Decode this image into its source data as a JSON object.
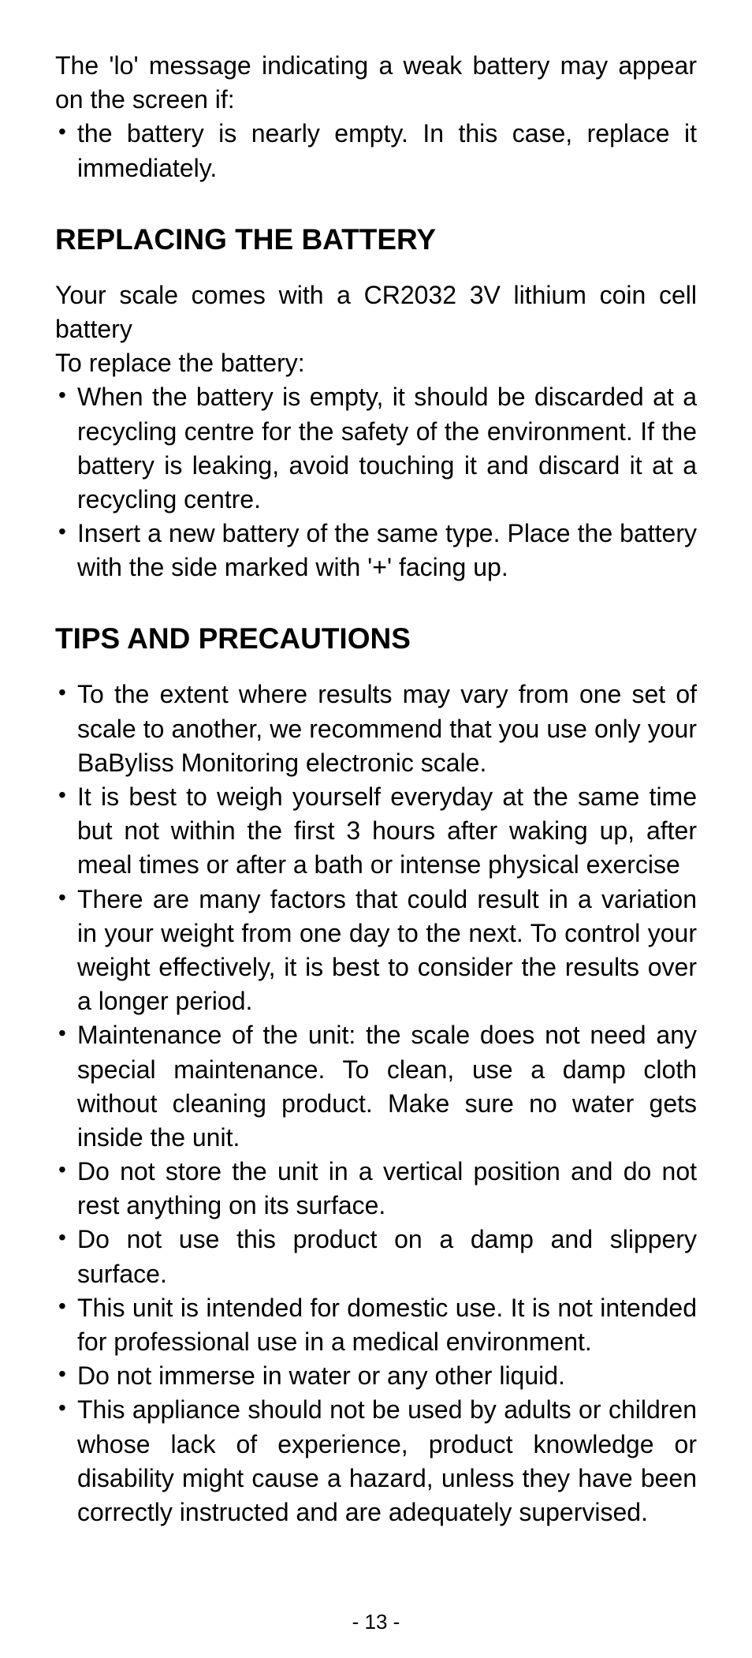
{
  "intro": {
    "text": "The 'lo' message indicating a weak battery may appear on the screen if:",
    "bullets": [
      "the battery is nearly empty. In this case, replace it immediately."
    ]
  },
  "section1": {
    "heading": "REPLACING THE BATTERY",
    "para1": "Your scale comes with a CR2032 3V lithium coin cell battery",
    "para2": "To replace the battery:",
    "bullets": [
      "When the battery is empty, it should be discarded at a recycling centre for the safety of the environment. If the battery is leaking, avoid touching it and discard it at a recycling centre.",
      "Insert a new battery of the same type. Place the battery with the side marked with '+' facing up."
    ]
  },
  "section2": {
    "heading": "TIPS AND PRECAUTIONS",
    "bullets": [
      "To the extent where results may vary from one set of scale to another, we recommend that you use only your BaByliss Monitoring electronic scale.",
      "It is best to weigh yourself everyday at the same time but not within the first 3 hours after waking up, after meal times or after a bath or intense physical exercise",
      "There are many factors that could result in a variation in your weight from one day to the next. To control your weight effectively, it is best to consider the results over a longer period.",
      "Maintenance of the unit: the scale does not need any special maintenance. To clean, use a damp cloth without cleaning product. Make sure no water gets inside the unit.",
      "Do not store the unit in a vertical position and do not rest anything on its surface.",
      "Do not use this product on a damp and slippery surface.",
      "This unit is intended for domestic use. It is not intended for professional use in a medical environment.",
      "Do not immerse in water or any other liquid.",
      "This appliance should not be used by adults or children whose lack of experience, product knowledge or disability might cause a hazard, unless they have been correctly instructed and are adequately supervised."
    ]
  },
  "pageNumber": "- 13 -"
}
